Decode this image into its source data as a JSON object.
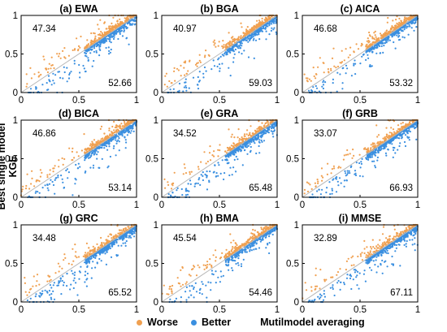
{
  "figure": {
    "ylabel_line1": "Best single model",
    "ylabel_line2": "KGE",
    "xlabel": "Mutilmodel averaging",
    "legend": [
      {
        "label": "Worse",
        "color": "#f0a050"
      },
      {
        "label": "Better",
        "color": "#3a8fe0"
      }
    ]
  },
  "chart_data": [
    {
      "type": "scatter",
      "title": "(a) EWA",
      "xlim": [
        0,
        1
      ],
      "ylim": [
        0,
        1
      ],
      "xticks": [
        "0",
        "0.5",
        "1"
      ],
      "yticks": [
        "0",
        "0.5",
        "1"
      ],
      "worse_pct": "47.34",
      "better_pct": "52.66",
      "seed": 11
    },
    {
      "type": "scatter",
      "title": "(b) BGA",
      "xlim": [
        0,
        1
      ],
      "ylim": [
        0,
        1
      ],
      "xticks": [
        "0",
        "0.5",
        "1"
      ],
      "yticks": [
        "0",
        "0.5",
        "1"
      ],
      "worse_pct": "40.97",
      "better_pct": "59.03",
      "seed": 23
    },
    {
      "type": "scatter",
      "title": "(c) AICA",
      "xlim": [
        0,
        1
      ],
      "ylim": [
        0,
        1
      ],
      "xticks": [
        "0",
        "0.5",
        "1"
      ],
      "yticks": [
        "0",
        "0.5",
        "1"
      ],
      "worse_pct": "46.68",
      "better_pct": "53.32",
      "seed": 37
    },
    {
      "type": "scatter",
      "title": "(d) BICA",
      "xlim": [
        0,
        1
      ],
      "ylim": [
        0,
        1
      ],
      "xticks": [
        "0",
        "0.5",
        "1"
      ],
      "yticks": [
        "0",
        "0.5",
        "1"
      ],
      "worse_pct": "46.86",
      "better_pct": "53.14",
      "seed": 41
    },
    {
      "type": "scatter",
      "title": "(e) GRA",
      "xlim": [
        0,
        1
      ],
      "ylim": [
        0,
        1
      ],
      "xticks": [
        "0",
        "0.5",
        "1"
      ],
      "yticks": [
        "0",
        "0.5",
        "1"
      ],
      "worse_pct": "34.52",
      "better_pct": "65.48",
      "seed": 53
    },
    {
      "type": "scatter",
      "title": "(f) GRB",
      "xlim": [
        0,
        1
      ],
      "ylim": [
        0,
        1
      ],
      "xticks": [
        "0",
        "0.5",
        "1"
      ],
      "yticks": [
        "0",
        "0.5",
        "1"
      ],
      "worse_pct": "33.07",
      "better_pct": "66.93",
      "seed": 67
    },
    {
      "type": "scatter",
      "title": "(g) GRC",
      "xlim": [
        0,
        1
      ],
      "ylim": [
        0,
        1
      ],
      "xticks": [
        "0",
        "0.5",
        "1"
      ],
      "yticks": [
        "0",
        "0.5",
        "1"
      ],
      "worse_pct": "34.48",
      "better_pct": "65.52",
      "seed": 71
    },
    {
      "type": "scatter",
      "title": "(h) BMA",
      "xlim": [
        0,
        1
      ],
      "ylim": [
        0,
        1
      ],
      "xticks": [
        "0",
        "0.5",
        "1"
      ],
      "yticks": [
        "0",
        "0.5",
        "1"
      ],
      "worse_pct": "45.54",
      "better_pct": "54.46",
      "seed": 83
    },
    {
      "type": "scatter",
      "title": "(i) MMSE",
      "xlim": [
        0,
        1
      ],
      "ylim": [
        0,
        1
      ],
      "xticks": [
        "0",
        "0.5",
        "1"
      ],
      "yticks": [
        "0",
        "0.5",
        "1"
      ],
      "worse_pct": "32.89",
      "better_pct": "67.11",
      "seed": 97
    }
  ]
}
